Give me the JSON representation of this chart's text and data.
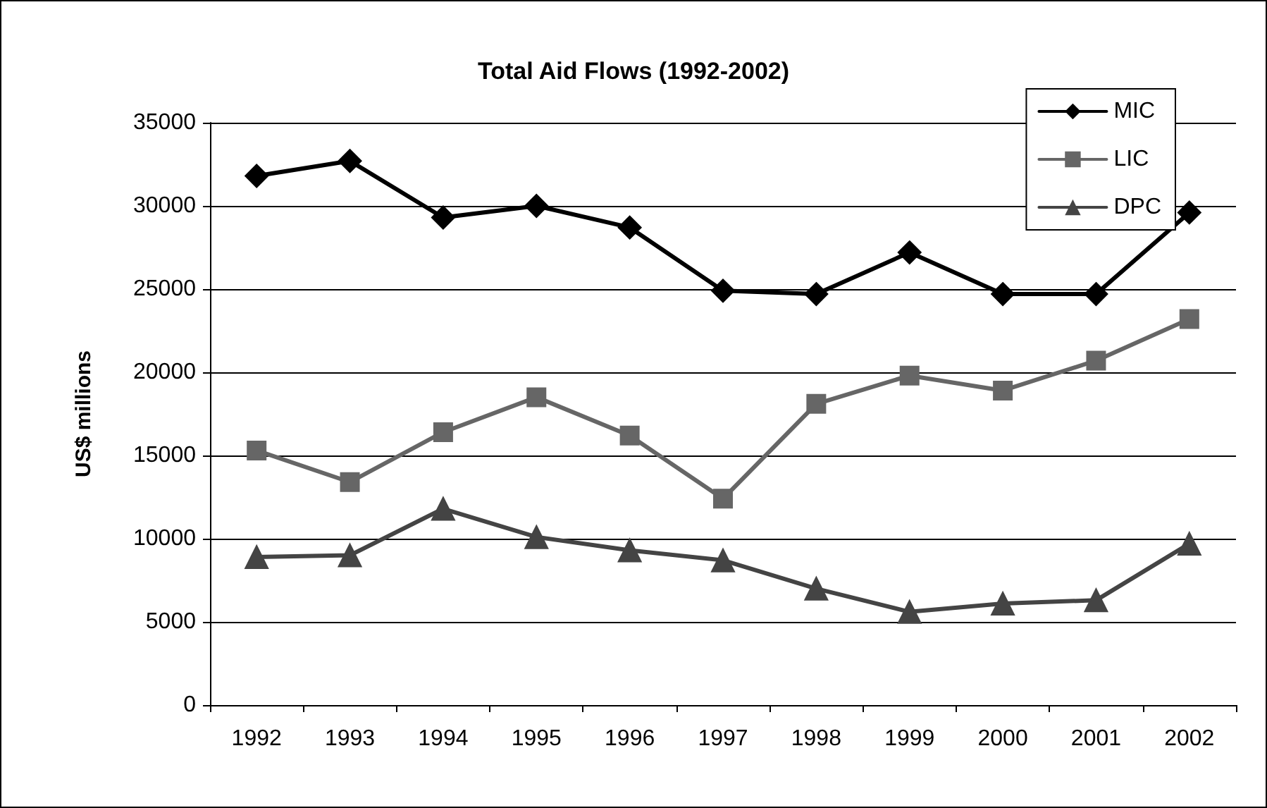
{
  "chart_data": {
    "type": "line",
    "title": "Total Aid Flows (1992-2002)",
    "ylabel": "US$ millions",
    "categories": [
      "1992",
      "1993",
      "1994",
      "1995",
      "1996",
      "1997",
      "1998",
      "1999",
      "2000",
      "2001",
      "2002"
    ],
    "series": [
      {
        "name": "MIC",
        "color": "#000000",
        "marker": "diamond",
        "values": [
          31800,
          32700,
          29300,
          30000,
          28700,
          24900,
          24700,
          27200,
          24700,
          24700,
          29600
        ]
      },
      {
        "name": "LIC",
        "color": "#666666",
        "marker": "square",
        "values": [
          15300,
          13400,
          16400,
          18500,
          16200,
          12400,
          18100,
          19800,
          18900,
          20700,
          23200
        ]
      },
      {
        "name": "DPC",
        "color": "#444444",
        "marker": "triangle",
        "values": [
          8900,
          9000,
          11800,
          10100,
          9300,
          8700,
          7000,
          5600,
          6100,
          6300,
          9700
        ]
      }
    ],
    "ylim": [
      0,
      35000
    ],
    "yticks": [
      0,
      5000,
      10000,
      15000,
      20000,
      25000,
      30000,
      35000
    ],
    "grid": "y",
    "legend": "top right",
    "line_style": "solid"
  }
}
